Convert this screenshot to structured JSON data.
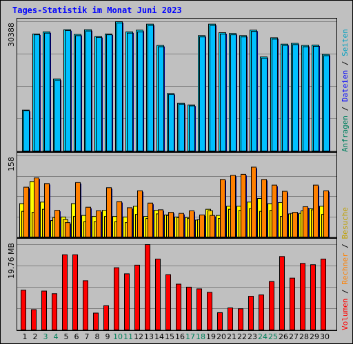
{
  "title": "Tages-Statistik im Monat Juni 2023",
  "colors": {
    "background": "#c0c0c0",
    "title": "#0000ff",
    "anfragen": "#00e0ff",
    "dateien": "#0060ff",
    "seiten": "#00c0ff",
    "besuche": "#ffff00",
    "rechner": "#ff8000",
    "volumen": "#ff0000",
    "day_weekday": "#000000",
    "day_weekend": "#00805a",
    "legend_anfragen": "#008060",
    "legend_dateien": "#0000ff",
    "legend_seiten": "#00a0c0",
    "legend_besuche": "#c0a000",
    "legend_rechner": "#ff8000",
    "legend_volumen": "#ff0000"
  },
  "legend_top": {
    "items": [
      "Anfragen",
      "Dateien",
      "Seiten"
    ],
    "separator": "/"
  },
  "legend_bottom": {
    "items": [
      "Volumen",
      "Rechner",
      "Besuche"
    ],
    "separator": "/"
  },
  "chart_data": [
    {
      "type": "bar",
      "ylabel_max": "30388",
      "ylim": [
        0,
        30388
      ],
      "categories": [
        "1",
        "2",
        "3",
        "4",
        "5",
        "6",
        "7",
        "8",
        "9",
        "10",
        "11",
        "12",
        "13",
        "14",
        "15",
        "16",
        "17",
        "18",
        "19",
        "20",
        "21",
        "22",
        "23",
        "24",
        "25",
        "26",
        "27",
        "28",
        "29",
        "30"
      ],
      "weekend_days": [
        "3",
        "4",
        "10",
        "11",
        "17",
        "18",
        "24",
        "25"
      ],
      "series": [
        {
          "name": "Anfragen",
          "values": [
            9600,
            27500,
            28000,
            16900,
            28500,
            27400,
            28500,
            26900,
            27500,
            30388,
            28000,
            28400,
            29800,
            24800,
            13500,
            11200,
            10800,
            27100,
            29800,
            27800,
            27600,
            27100,
            28400,
            22100,
            26600,
            25100,
            25300,
            24800,
            24900,
            22700
          ]
        },
        {
          "name": "Dateien",
          "values": [
            9500,
            27300,
            27700,
            16600,
            28300,
            27100,
            28200,
            26700,
            27300,
            30100,
            27700,
            28000,
            29500,
            24500,
            13300,
            11000,
            10600,
            26800,
            29500,
            27500,
            27300,
            26800,
            28100,
            21800,
            26300,
            24800,
            25000,
            24500,
            24600,
            22400
          ]
        }
      ]
    },
    {
      "type": "bar",
      "ylabel_max": "158",
      "ylim": [
        0,
        158
      ],
      "categories": [
        "1",
        "2",
        "3",
        "4",
        "5",
        "6",
        "7",
        "8",
        "9",
        "10",
        "11",
        "12",
        "13",
        "14",
        "15",
        "16",
        "17",
        "18",
        "19",
        "20",
        "21",
        "22",
        "23",
        "24",
        "25",
        "26",
        "27",
        "28",
        "29",
        "30"
      ],
      "series": [
        {
          "name": "Seiten",
          "values": [
            50,
            48,
            54,
            38,
            34,
            40,
            30,
            30,
            40,
            30,
            28,
            44,
            36,
            45,
            42,
            38,
            36,
            34,
            51,
            36,
            54,
            52,
            55,
            50,
            52,
            40,
            46,
            51,
            53,
            44
          ]
        },
        {
          "name": "Besuche",
          "values": [
            65,
            108,
            68,
            32,
            39,
            65,
            42,
            40,
            52,
            40,
            39,
            60,
            40,
            52,
            43,
            39,
            38,
            33,
            54,
            42,
            60,
            60,
            68,
            75,
            65,
            67,
            45,
            46,
            55,
            60
          ]
        },
        {
          "name": "Rechner",
          "values": [
            97,
            115,
            104,
            52,
            28,
            106,
            58,
            51,
            96,
            69,
            57,
            90,
            66,
            53,
            48,
            46,
            51,
            43,
            42,
            112,
            120,
            122,
            136,
            112,
            101,
            89,
            48,
            59,
            101,
            90
          ]
        }
      ]
    },
    {
      "type": "bar",
      "ylabel_max": "19.76 MB",
      "ylim": [
        0,
        19.76
      ],
      "categories": [
        "1",
        "2",
        "3",
        "4",
        "5",
        "6",
        "7",
        "8",
        "9",
        "10",
        "11",
        "12",
        "13",
        "14",
        "15",
        "16",
        "17",
        "18",
        "19",
        "20",
        "21",
        "22",
        "23",
        "24",
        "25",
        "26",
        "27",
        "28",
        "29",
        "30"
      ],
      "series": [
        {
          "name": "Volumen",
          "values": [
            9.2,
            4.7,
            9.0,
            8.4,
            17.4,
            17.4,
            11.4,
            3.9,
            5.6,
            14.4,
            13.0,
            15.0,
            19.76,
            16.4,
            12.8,
            10.6,
            9.9,
            9.5,
            8.7,
            4.0,
            5.1,
            4.9,
            7.8,
            8.1,
            11.2,
            17.0,
            12.0,
            15.4,
            15.1,
            16.4
          ]
        }
      ]
    }
  ]
}
